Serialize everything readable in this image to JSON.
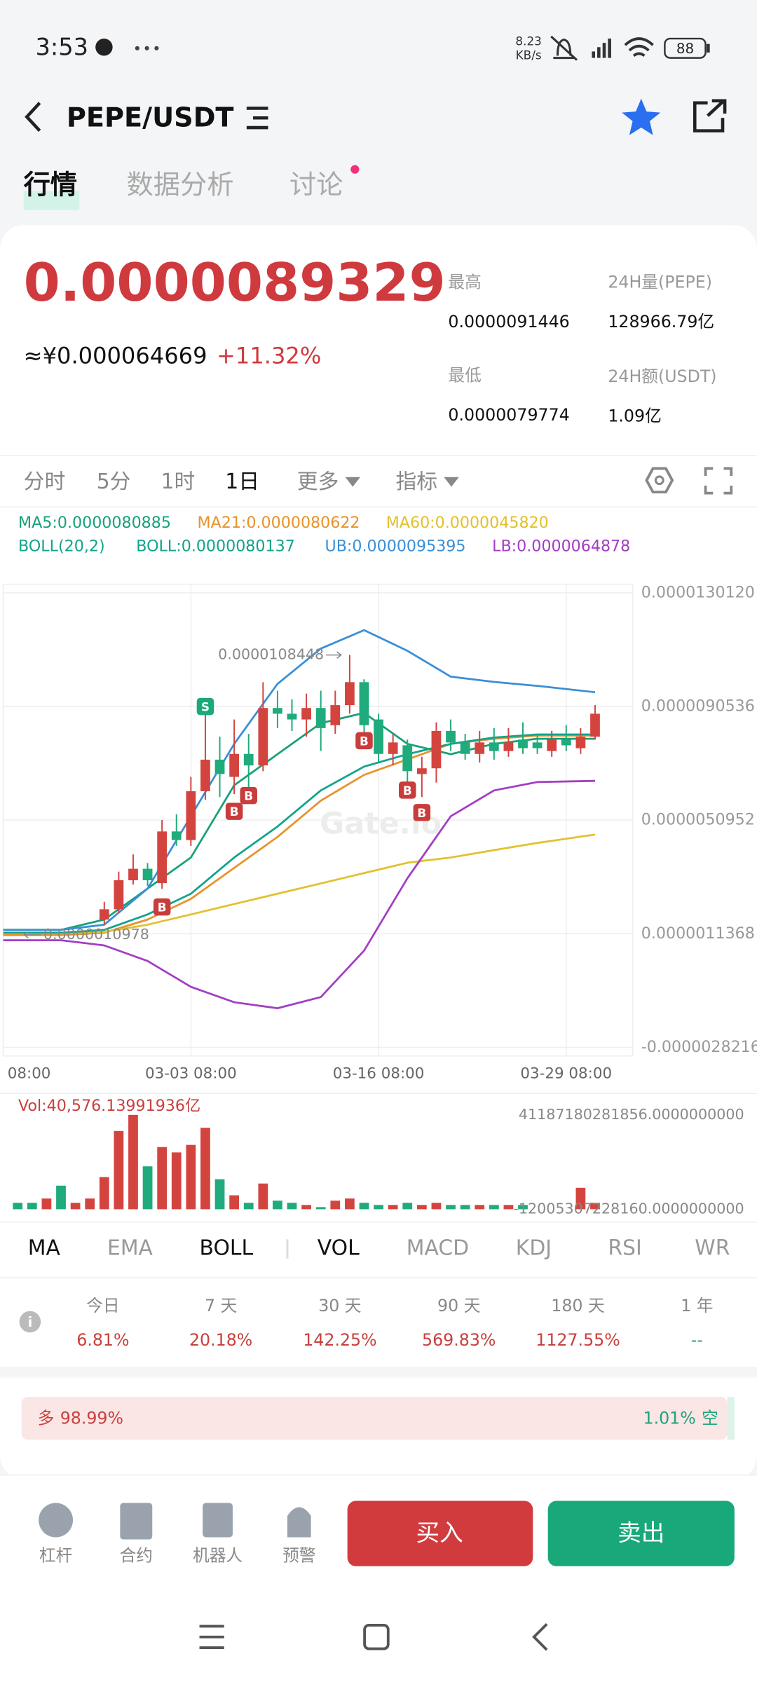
{
  "status_bar": {
    "time": "3:53",
    "net_speed": "8.23",
    "net_unit": "KB/s",
    "battery": "88"
  },
  "header": {
    "pair": "PEPE/USDT"
  },
  "tabs": [
    "行情",
    "数据分析",
    "讨论"
  ],
  "tab_active": 0,
  "ticker": {
    "price": "0.0000089329",
    "fiat": "≈¥0.000064669",
    "change": "+11.32%",
    "stats": [
      {
        "label": "最高",
        "value": "0.0000091446"
      },
      {
        "label": "24H量(PEPE)",
        "value": "128966.79亿"
      },
      {
        "label": "最低",
        "value": "0.0000079774"
      },
      {
        "label": "24H额(USDT)",
        "value": "1.09亿"
      }
    ]
  },
  "intervals": [
    "分时",
    "5分",
    "1时",
    "1日",
    "更多",
    "指标"
  ],
  "interval_active": 3,
  "kline": {
    "type": "candlestick",
    "boll_params": "BOLL(20,2)",
    "xlim": [
      -7,
      36.6
    ],
    "xticks": [
      {
        "value": -7,
        "label": "08:00"
      },
      {
        "value": 6,
        "label": "03-03 08:00"
      },
      {
        "value": 19,
        "label": "03-16 08:00"
      },
      {
        "value": 32,
        "label": "03-29 08:00"
      }
    ],
    "ylim": [
      -3.12e-06,
      1.331e-05
    ],
    "yticks": [
      {
        "value": 1.3012e-05,
        "label": "0.0000130120"
      },
      {
        "value": 9.0536e-06,
        "label": "0.0000090536"
      },
      {
        "value": 5.0952e-06,
        "label": "0.0000050952"
      },
      {
        "value": 1.1368e-06,
        "label": "0.0000011368"
      },
      {
        "value": -2.8216e-06,
        "label": "-0.0000028216"
      }
    ],
    "grid": true,
    "up_color": "#d4443f",
    "down_color": "#1fab7b",
    "candles": [
      {
        "open": 1.63e-06,
        "high": 2.25e-06,
        "low": 1.45e-06,
        "close": 1.99e-06
      },
      {
        "open": 1.99e-06,
        "high": 3.3e-06,
        "low": 1.85e-06,
        "close": 3e-06
      },
      {
        "open": 3e-06,
        "high": 3.9e-06,
        "low": 2.85e-06,
        "close": 3.4e-06
      },
      {
        "open": 3.4e-06,
        "high": 3.6e-06,
        "low": 2.8e-06,
        "close": 3e-06
      },
      {
        "open": 2.9e-06,
        "high": 5.1e-06,
        "low": 2.7e-06,
        "close": 4.7e-06
      },
      {
        "open": 4.7e-06,
        "high": 5.3e-06,
        "low": 4.2e-06,
        "close": 4.4e-06
      },
      {
        "open": 4.4e-06,
        "high": 6.6e-06,
        "low": 4.2e-06,
        "close": 6.1e-06
      },
      {
        "open": 6.1e-06,
        "high": 9e-06,
        "low": 5.8e-06,
        "close": 7.2e-06
      },
      {
        "open": 7.2e-06,
        "high": 8e-06,
        "low": 5.9e-06,
        "close": 6.7e-06
      },
      {
        "open": 6.6e-06,
        "high": 8.6e-06,
        "low": 6e-06,
        "close": 7.4e-06
      },
      {
        "open": 7.4e-06,
        "high": 8.1e-06,
        "low": 6.2e-06,
        "close": 7e-06
      },
      {
        "open": 7e-06,
        "high": 9.9e-06,
        "low": 6.8e-06,
        "close": 9e-06
      },
      {
        "open": 9e-06,
        "high": 9.6e-06,
        "low": 8.3e-06,
        "close": 8.8e-06
      },
      {
        "open": 8.8e-06,
        "high": 9.3e-06,
        "low": 8.2e-06,
        "close": 8.6e-06
      },
      {
        "open": 8.6e-06,
        "high": 9.5e-06,
        "low": 8e-06,
        "close": 9e-06
      },
      {
        "open": 9e-06,
        "high": 9.6e-06,
        "low": 7.5e-06,
        "close": 8.3e-06
      },
      {
        "open": 8.4e-06,
        "high": 9.6e-06,
        "low": 8.1e-06,
        "close": 9.1e-06
      },
      {
        "open": 9.1e-06,
        "high": 1.08448e-05,
        "low": 8.8e-06,
        "close": 9.9e-06
      },
      {
        "open": 9.9e-06,
        "high": 1e-05,
        "low": 8e-06,
        "close": 8.4e-06
      },
      {
        "open": 8.6e-06,
        "high": 8.8e-06,
        "low": 7.1e-06,
        "close": 7.4e-06
      },
      {
        "open": 7.4e-06,
        "high": 8.1e-06,
        "low": 7e-06,
        "close": 7.8e-06
      },
      {
        "open": 7.7e-06,
        "high": 7.9e-06,
        "low": 6e-06,
        "close": 6.8e-06
      },
      {
        "open": 6.7e-06,
        "high": 7.3e-06,
        "low": 5.9e-06,
        "close": 6.9e-06
      },
      {
        "open": 6.9e-06,
        "high": 8.5e-06,
        "low": 6.4e-06,
        "close": 8.2e-06
      },
      {
        "open": 8.2e-06,
        "high": 8.6e-06,
        "low": 7.5e-06,
        "close": 7.8e-06
      },
      {
        "open": 7.8e-06,
        "high": 8.1e-06,
        "low": 7.2e-06,
        "close": 7.4e-06
      },
      {
        "open": 7.4e-06,
        "high": 8.2e-06,
        "low": 7.1e-06,
        "close": 7.8e-06
      },
      {
        "open": 7.8e-06,
        "high": 8.3e-06,
        "low": 7.2e-06,
        "close": 7.5e-06
      },
      {
        "open": 7.5e-06,
        "high": 8.3e-06,
        "low": 7.3e-06,
        "close": 7.8e-06
      },
      {
        "open": 7.9e-06,
        "high": 8.5e-06,
        "low": 7.4e-06,
        "close": 7.6e-06
      },
      {
        "open": 7.8e-06,
        "high": 8.1e-06,
        "low": 7.4e-06,
        "close": 7.6e-06
      },
      {
        "open": 7.5e-06,
        "high": 8.2e-06,
        "low": 7.3e-06,
        "close": 7.9e-06
      },
      {
        "open": 7.9e-06,
        "high": 8.4e-06,
        "low": 7.5e-06,
        "close": 7.7e-06
      },
      {
        "open": 7.6e-06,
        "high": 8.3e-06,
        "low": 7.4e-06,
        "close": 8e-06
      },
      {
        "open": 8e-06,
        "high": 9.1e-06,
        "low": 7.9e-06,
        "close": 8.8e-06
      }
    ],
    "line_x": [
      -7,
      -3,
      0,
      3,
      6,
      9,
      12,
      15,
      18,
      21,
      24,
      27,
      30,
      34
    ],
    "lines": [
      {
        "label": "MA5:0.0000080885",
        "color": "#17a07a",
        "values": [
          1.27e-06,
          1.27e-06,
          1.63e-06,
          2.71e-06,
          3.79e-06,
          6.31e-06,
          7.39e-06,
          8.47e-06,
          8.83e-06,
          7.75e-06,
          7.39e-06,
          7.75e-06,
          7.93e-06,
          7.93e-06
        ]
      },
      {
        "label": "MA21:0.0000080622",
        "color": "#e8922a",
        "values": [
          1.09e-06,
          1.09e-06,
          1.17e-06,
          1.63e-06,
          2.35e-06,
          3.43e-06,
          4.51e-06,
          5.77e-06,
          6.67e-06,
          7.21e-06,
          7.75e-06,
          7.93e-06,
          8.04e-06,
          8.04e-06
        ]
      },
      {
        "label": "MA60:0.0000045820",
        "color": "#e3c02c",
        "values": [
          1.17e-06,
          1.17e-06,
          1.2e-06,
          1.45e-06,
          1.81e-06,
          2.17e-06,
          2.53e-06,
          2.89e-06,
          3.25e-06,
          3.61e-06,
          3.79e-06,
          4.05e-06,
          4.3e-06,
          4.59e-06
        ]
      },
      {
        "label": "BOLL:0.0000080137",
        "color": "#12a38b",
        "values": [
          1.17e-06,
          1.17e-06,
          1.27e-06,
          1.81e-06,
          2.53e-06,
          3.79e-06,
          4.87e-06,
          6.13e-06,
          6.96e-06,
          7.39e-06,
          7.75e-06,
          7.97e-06,
          8.08e-06,
          8.08e-06
        ]
      },
      {
        "label": "UB:0.0000095395",
        "color": "#3a8fd6",
        "values": [
          1.27e-06,
          1.27e-06,
          1.45e-06,
          2.71e-06,
          5.23e-06,
          7.75e-06,
          9.84e-06,
          1.107e-05,
          1.171e-05,
          1.099e-05,
          1.009e-05,
          9.91e-06,
          9.77e-06,
          9.55e-06
        ]
      },
      {
        "label": "LB:0.0000064878",
        "color": "#a23ec4",
        "values": [
          9.1e-07,
          9.1e-07,
          7.3e-07,
          1.9e-07,
          -7.1e-07,
          -1.25e-06,
          -1.46e-06,
          -1.07e-06,
          5.5e-07,
          3.07e-06,
          5.23e-06,
          6.13e-06,
          6.42e-06,
          6.46e-06
        ]
      }
    ],
    "markers": [
      {
        "label": "S",
        "x": 7,
        "y": 9.05e-06,
        "color": "#1aa97a"
      },
      {
        "label": "B",
        "x": 4,
        "y": 2.07e-06,
        "color": "#c83c3c"
      },
      {
        "label": "B",
        "x": 9,
        "y": 5.4e-06,
        "color": "#c83c3c"
      },
      {
        "label": "B",
        "x": 10,
        "y": 5.95e-06,
        "color": "#c83c3c"
      },
      {
        "label": "B",
        "x": 18,
        "y": 7.86e-06,
        "color": "#c83c3c"
      },
      {
        "label": "B",
        "x": 21,
        "y": 6.14e-06,
        "color": "#c83c3c"
      },
      {
        "label": "B",
        "x": 22,
        "y": 5.36e-06,
        "color": "#c83c3c"
      }
    ],
    "annotations": [
      {
        "value": 1.08448e-05,
        "label": "0.0000108448",
        "x": 17
      },
      {
        "value": 1.0978e-06,
        "label": "0.0000010978",
        "x": -6
      }
    ],
    "watermark": "Gate.io",
    "volume": {
      "label": "Vol:40,576.13991936亿",
      "ylim": [
        -12005307228160,
        41187180281856
      ],
      "yticks": [
        {
          "value": 41187180281856,
          "label": "41187180281856.0000000000"
        },
        {
          "value": -12005307228160,
          "label": "-12005307228160.0000000000"
        }
      ],
      "x": [
        -6,
        -5,
        -4,
        -3,
        -2,
        -1,
        0,
        1,
        2,
        3,
        4,
        5,
        6,
        7,
        8,
        9,
        10,
        11,
        12,
        13,
        14,
        15,
        16,
        17,
        18,
        19,
        20,
        21,
        22,
        23,
        24,
        25,
        26,
        27,
        28,
        29,
        30,
        31,
        32,
        33,
        34
      ],
      "values": [
        -8380000000000.0,
        -8380000000000.0,
        -5960000000000.0,
        1290000000000.0,
        -8380000000000.0,
        -5960000000000.0,
        6130000000000.0,
        32120000000000.0,
        41190000000000.0,
        12180000000000.0,
        23060000000000.0,
        20030000000000.0,
        24270000000000.0,
        33940000000000.0,
        4920000000000.0,
        -4150000000000.0,
        -8380000000000.0,
        2500000000000.0,
        -7170000000000.0,
        -8380000000000.0,
        -9590000000000.0,
        -10800000000000.0,
        -7170000000000.0,
        -5960000000000.0,
        -8380000000000.0,
        -9590000000000.0,
        -9590000000000.0,
        -8380000000000.0,
        -9590000000000.0,
        -8380000000000.0,
        -9590000000000.0,
        -9590000000000.0,
        -9590000000000.0,
        -9590000000000.0,
        -9590000000000.0,
        -9590000000000.0,
        null,
        null,
        null,
        85000000000.0,
        -8380000000000.0
      ],
      "colors": [
        "#1fab7b",
        "#1fab7b",
        "#d4443f",
        "#1fab7b",
        "#d4443f",
        "#d4443f",
        "#d4443f",
        "#d4443f",
        "#d4443f",
        "#1fab7b",
        "#d4443f",
        "#d4443f",
        "#d4443f",
        "#d4443f",
        "#1fab7b",
        "#d4443f",
        "#1fab7b",
        "#d4443f",
        "#1fab7b",
        "#1fab7b",
        "#d4443f",
        "#1fab7b",
        "#d4443f",
        "#d4443f",
        "#1fab7b",
        "#1fab7b",
        "#d4443f",
        "#1fab7b",
        "#d4443f",
        "#d4443f",
        "#1fab7b",
        "#1fab7b",
        "#d4443f",
        "#1fab7b",
        "#d4443f",
        "#1fab7b",
        "#1fab7b",
        "#d4443f",
        "#1fab7b",
        "#d4443f",
        "#d4443f"
      ]
    }
  },
  "indicator_tabs": [
    "MA",
    "EMA",
    "BOLL",
    "VOL",
    "MACD",
    "KDJ",
    "RSI",
    "WR"
  ],
  "indicator_active": [
    0,
    2,
    3
  ],
  "performance": {
    "periods": [
      "今日",
      "7 天",
      "30 天",
      "90 天",
      "180 天",
      "1 年"
    ],
    "values": [
      "6.81%",
      "20.18%",
      "142.25%",
      "569.83%",
      "1127.55%",
      "--"
    ],
    "colors": [
      "#c8403e",
      "#c8403e",
      "#c8403e",
      "#c8403e",
      "#c8403e",
      "#2a9d8f"
    ]
  },
  "long_short": {
    "long_label": "多",
    "long": {
      "value": 98.99,
      "label": "98.99%"
    },
    "short": {
      "value": 1.01,
      "label": "1.01%"
    },
    "short_label": "空"
  },
  "toolbar": [
    "杠杆",
    "合约",
    "机器人",
    "预警"
  ],
  "buttons": {
    "buy": "买入",
    "sell": "卖出"
  }
}
